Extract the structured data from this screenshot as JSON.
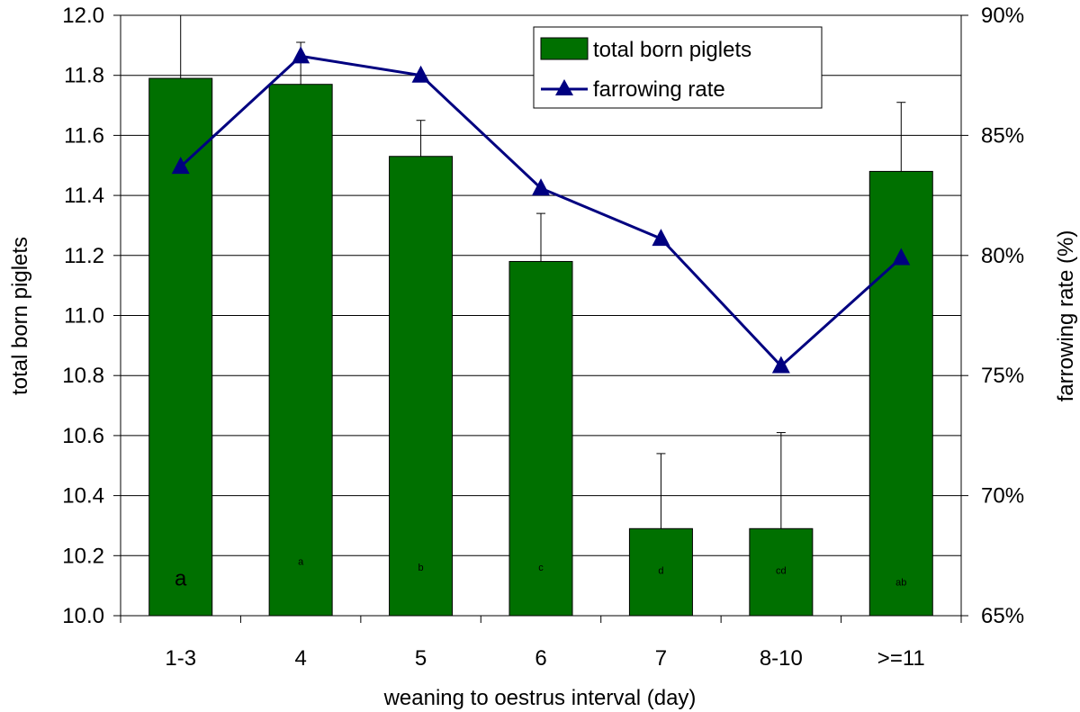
{
  "chart_data": {
    "type": "bar",
    "xlabel": "weaning to oestrus interval (day)",
    "ylabel": "total born piglets",
    "y2label": "farrowing rate (%)",
    "categories": [
      "1-3",
      "4",
      "5",
      "6",
      "7",
      "8-10",
      ">=11"
    ],
    "ylim": [
      10.0,
      12.0
    ],
    "y_ticks": [
      "10.0",
      "10.2",
      "10.4",
      "10.6",
      "10.8",
      "11.0",
      "11.2",
      "11.4",
      "11.6",
      "11.8",
      "12.0"
    ],
    "y2lim": [
      65,
      90
    ],
    "y2_ticks": [
      "65%",
      "70%",
      "75%",
      "80%",
      "85%",
      "90%"
    ],
    "grid": true,
    "legend_position": "top-right",
    "series": [
      {
        "name": "total born piglets",
        "kind": "bar",
        "axis": "left",
        "color": "#007000",
        "values": [
          11.79,
          11.77,
          11.53,
          11.18,
          10.29,
          10.29,
          11.48
        ],
        "error_upper": [
          12.0,
          11.91,
          11.65,
          11.34,
          10.54,
          10.61,
          11.71
        ]
      },
      {
        "name": "farrowing rate",
        "kind": "line",
        "axis": "right",
        "color": "#000080",
        "marker": "triangle",
        "values": [
          83.7,
          88.3,
          87.5,
          82.8,
          80.7,
          75.4,
          79.9
        ]
      }
    ],
    "annotations": [
      "a",
      "a",
      "b",
      "c",
      "d",
      "cd",
      "ab"
    ],
    "annotation_values": [
      10.1,
      10.17,
      10.15,
      10.15,
      10.14,
      10.14,
      10.1
    ]
  }
}
